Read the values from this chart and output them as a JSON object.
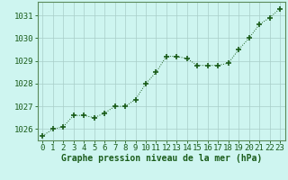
{
  "x": [
    0,
    1,
    2,
    3,
    4,
    5,
    6,
    7,
    8,
    9,
    10,
    11,
    12,
    13,
    14,
    15,
    16,
    17,
    18,
    19,
    20,
    21,
    22,
    23
  ],
  "y": [
    1025.7,
    1026.0,
    1026.1,
    1026.6,
    1026.6,
    1026.5,
    1026.7,
    1027.0,
    1027.0,
    1027.3,
    1028.0,
    1028.5,
    1029.2,
    1029.2,
    1029.1,
    1028.8,
    1028.8,
    1028.8,
    1028.9,
    1029.5,
    1030.0,
    1030.6,
    1030.9,
    1031.3
  ],
  "ylim": [
    1025.5,
    1031.6
  ],
  "xlim": [
    -0.5,
    23.5
  ],
  "yticks": [
    1026,
    1027,
    1028,
    1029,
    1030,
    1031
  ],
  "xticks": [
    0,
    1,
    2,
    3,
    4,
    5,
    6,
    7,
    8,
    9,
    10,
    11,
    12,
    13,
    14,
    15,
    16,
    17,
    18,
    19,
    20,
    21,
    22,
    23
  ],
  "xlabel": "Graphe pression niveau de la mer (hPa)",
  "line_color": "#1a5c1a",
  "marker": "+",
  "marker_size": 5,
  "marker_color": "#1a5c1a",
  "bg_color": "#cef5f0",
  "grid_color": "#a8cec8",
  "tick_color": "#1a5c1a",
  "label_color": "#1a5c1a",
  "xlabel_fontsize": 7,
  "tick_fontsize": 6.5
}
